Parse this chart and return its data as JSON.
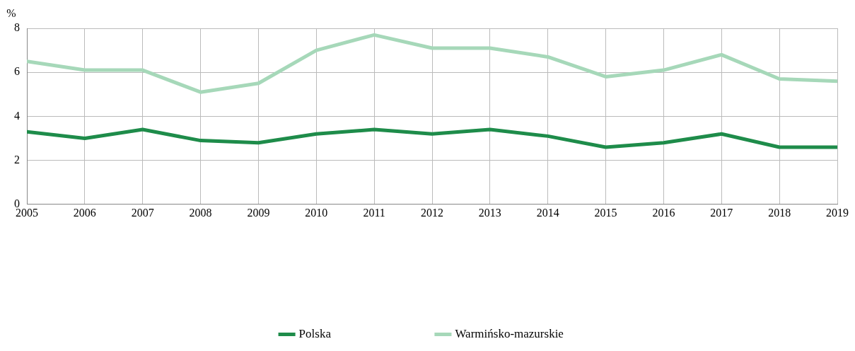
{
  "chart_data": {
    "type": "line",
    "ylabel": "%",
    "x": [
      2005,
      2006,
      2007,
      2008,
      2009,
      2010,
      2011,
      2012,
      2013,
      2014,
      2015,
      2016,
      2017,
      2018,
      2019
    ],
    "xlim": [
      2005,
      2019
    ],
    "xticks": [
      2005,
      2006,
      2007,
      2008,
      2009,
      2010,
      2011,
      2012,
      2013,
      2014,
      2015,
      2016,
      2017,
      2018,
      2019
    ],
    "ylim": [
      0,
      8
    ],
    "yticks": [
      0,
      2,
      4,
      6,
      8
    ],
    "grid": true,
    "legend": "bottom",
    "marker": "none",
    "line_style": "solid",
    "series": [
      {
        "name": "Polska",
        "color": "#1e8c4a",
        "values": [
          3.3,
          3.0,
          3.4,
          2.9,
          2.8,
          3.2,
          3.4,
          3.2,
          3.4,
          3.1,
          2.6,
          2.8,
          3.2,
          2.6,
          2.6
        ]
      },
      {
        "name": "Warmińsko-mazurskie",
        "color": "#a6d8b9",
        "values": [
          6.5,
          6.1,
          6.1,
          5.1,
          5.5,
          7.0,
          7.7,
          7.1,
          7.1,
          6.7,
          5.8,
          6.1,
          6.8,
          5.7,
          5.6
        ]
      }
    ]
  }
}
